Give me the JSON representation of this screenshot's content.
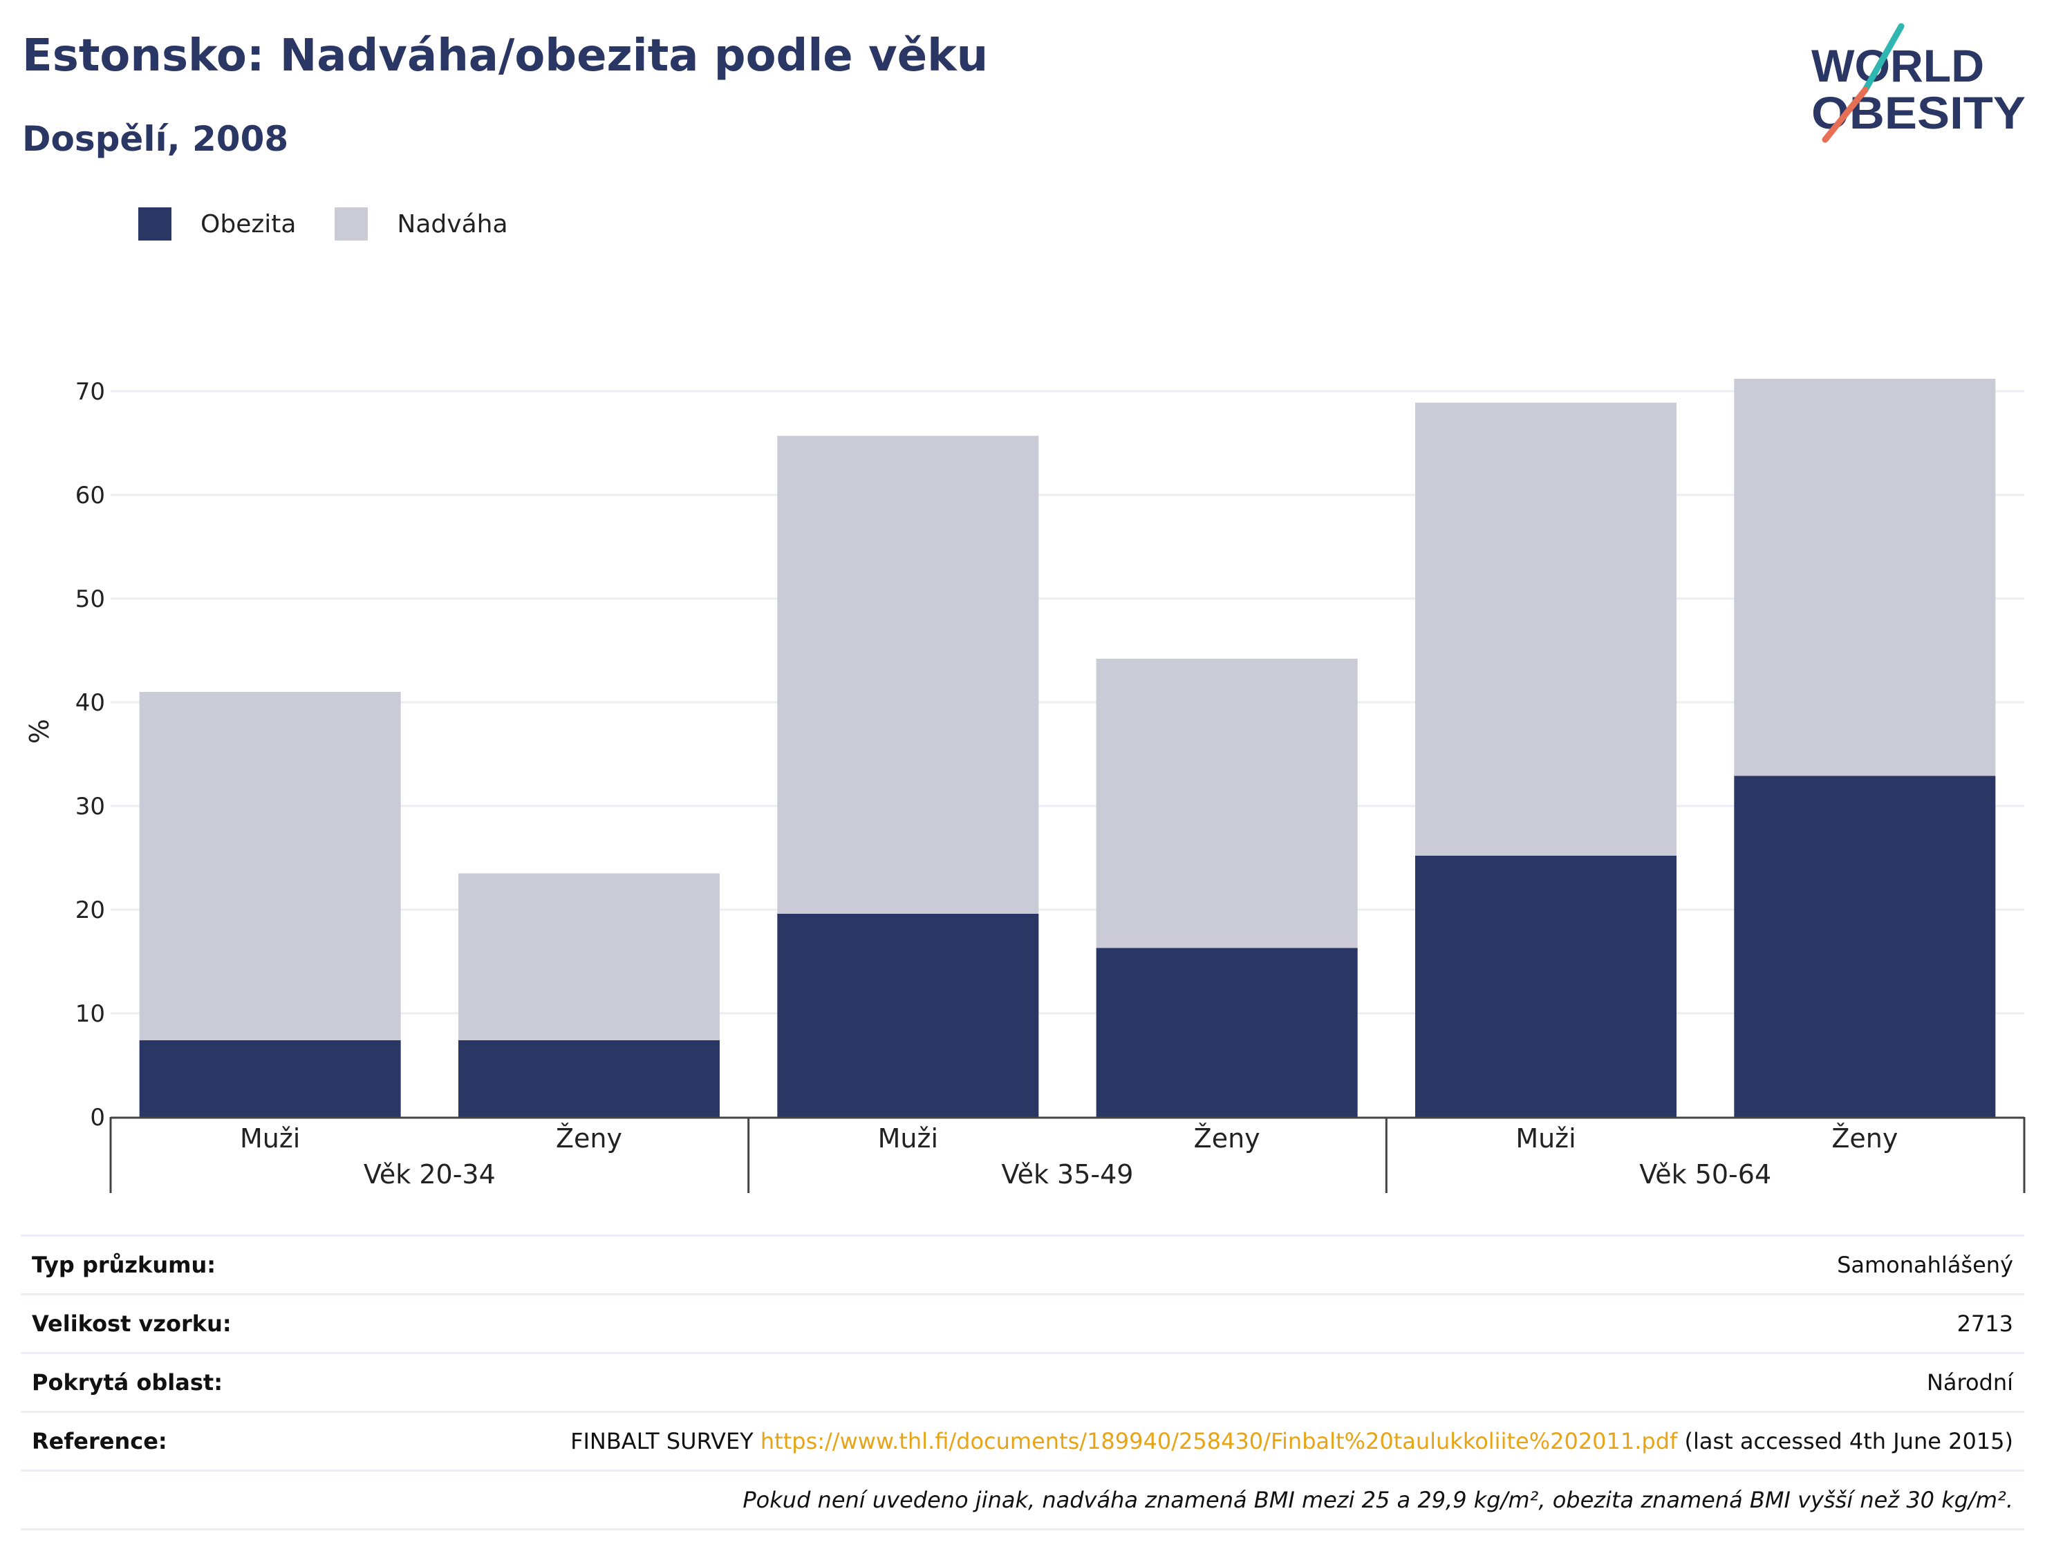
{
  "header": {
    "title": "Estonsko: Nadváha/obezita podle věku",
    "subtitle": "Dospělí, 2008"
  },
  "logo": {
    "line1": "WORLD",
    "line2": "OBESITY"
  },
  "legend": [
    {
      "label": "Obezita",
      "color": "#2a3663"
    },
    {
      "label": "Nadváha",
      "color": "#cacbd6"
    }
  ],
  "chart_data": {
    "type": "bar",
    "stacked": true,
    "ylabel": "%",
    "ylim": [
      0,
      70
    ],
    "yticks": [
      0,
      10,
      20,
      30,
      40,
      50,
      60,
      70
    ],
    "grid": true,
    "legend_position": "top-left",
    "categories": [
      "Muži",
      "Ženy",
      "Muži",
      "Ženy",
      "Muži",
      "Ženy"
    ],
    "groups": [
      {
        "label": "Věk 20-34",
        "span": 2
      },
      {
        "label": "Věk 35-49",
        "span": 2
      },
      {
        "label": "Věk 50-64",
        "span": 2
      }
    ],
    "series": [
      {
        "name": "Obezita",
        "color": "#2a3663",
        "values": [
          7.4,
          7.4,
          19.6,
          16.3,
          25.2,
          32.9
        ]
      },
      {
        "name": "Nadváha",
        "color": "#cacbd6",
        "values": [
          33.6,
          16.1,
          46.1,
          27.9,
          43.7,
          38.3
        ]
      }
    ]
  },
  "info": {
    "survey_type_label": "Typ průzkumu:",
    "survey_type_value": "Samonahlášený",
    "sample_size_label": "Velikost vzorku:",
    "sample_size_value": "2713",
    "coverage_label": "Pokrytá oblast:",
    "coverage_value": "Národní",
    "reference_label": "Reference:",
    "reference_prefix": "FINBALT SURVEY ",
    "reference_link": "https://www.thl.fi/documents/189940/258430/Finbalt%20taulukkoliite%202011.pdf",
    "reference_suffix": " (last accessed 4th June 2015)",
    "footnote": "Pokud není uvedeno jinak, nadváha znamená BMI mezi 25 a 29,9 kg/m², obezita znamená BMI vyšší než 30 kg/m²."
  }
}
